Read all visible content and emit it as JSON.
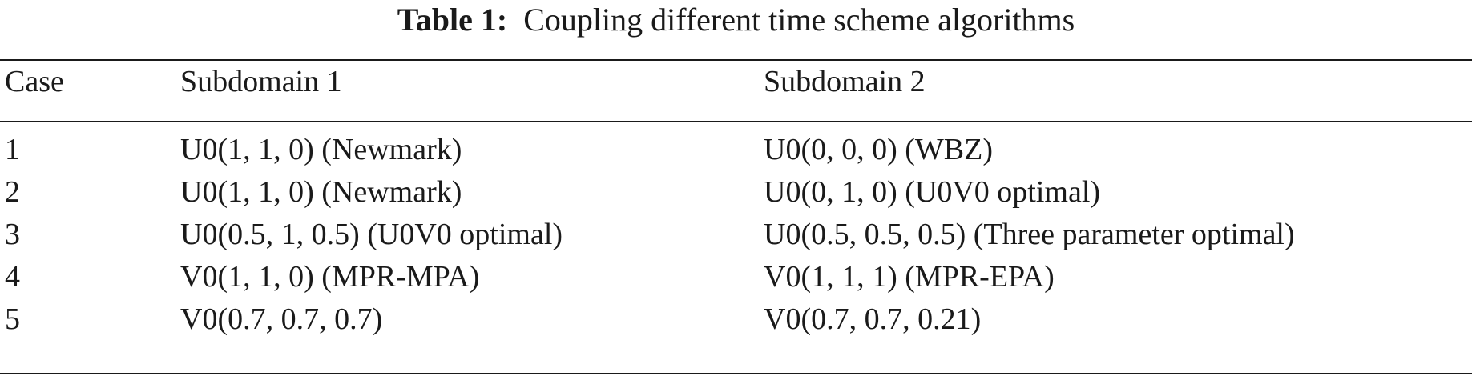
{
  "table": {
    "caption_label": "Table 1:",
    "caption_text": "Coupling different time scheme algorithms",
    "headers": [
      "Case",
      "Subdomain 1",
      "Subdomain 2"
    ],
    "rows": [
      [
        "1",
        "U0(1, 1, 0) (Newmark)",
        "U0(0, 0, 0) (WBZ)"
      ],
      [
        "2",
        "U0(1, 1, 0) (Newmark)",
        "U0(0, 1, 0) (U0V0 optimal)"
      ],
      [
        "3",
        "U0(0.5, 1, 0.5) (U0V0 optimal)",
        "U0(0.5, 0.5, 0.5) (Three parameter optimal)"
      ],
      [
        "4",
        "V0(1, 1, 0) (MPR-MPA)",
        "V0(1, 1, 1) (MPR-EPA)"
      ],
      [
        "5",
        "V0(0.7, 0.7, 0.7)",
        "V0(0.7, 0.7, 0.21)"
      ]
    ]
  }
}
